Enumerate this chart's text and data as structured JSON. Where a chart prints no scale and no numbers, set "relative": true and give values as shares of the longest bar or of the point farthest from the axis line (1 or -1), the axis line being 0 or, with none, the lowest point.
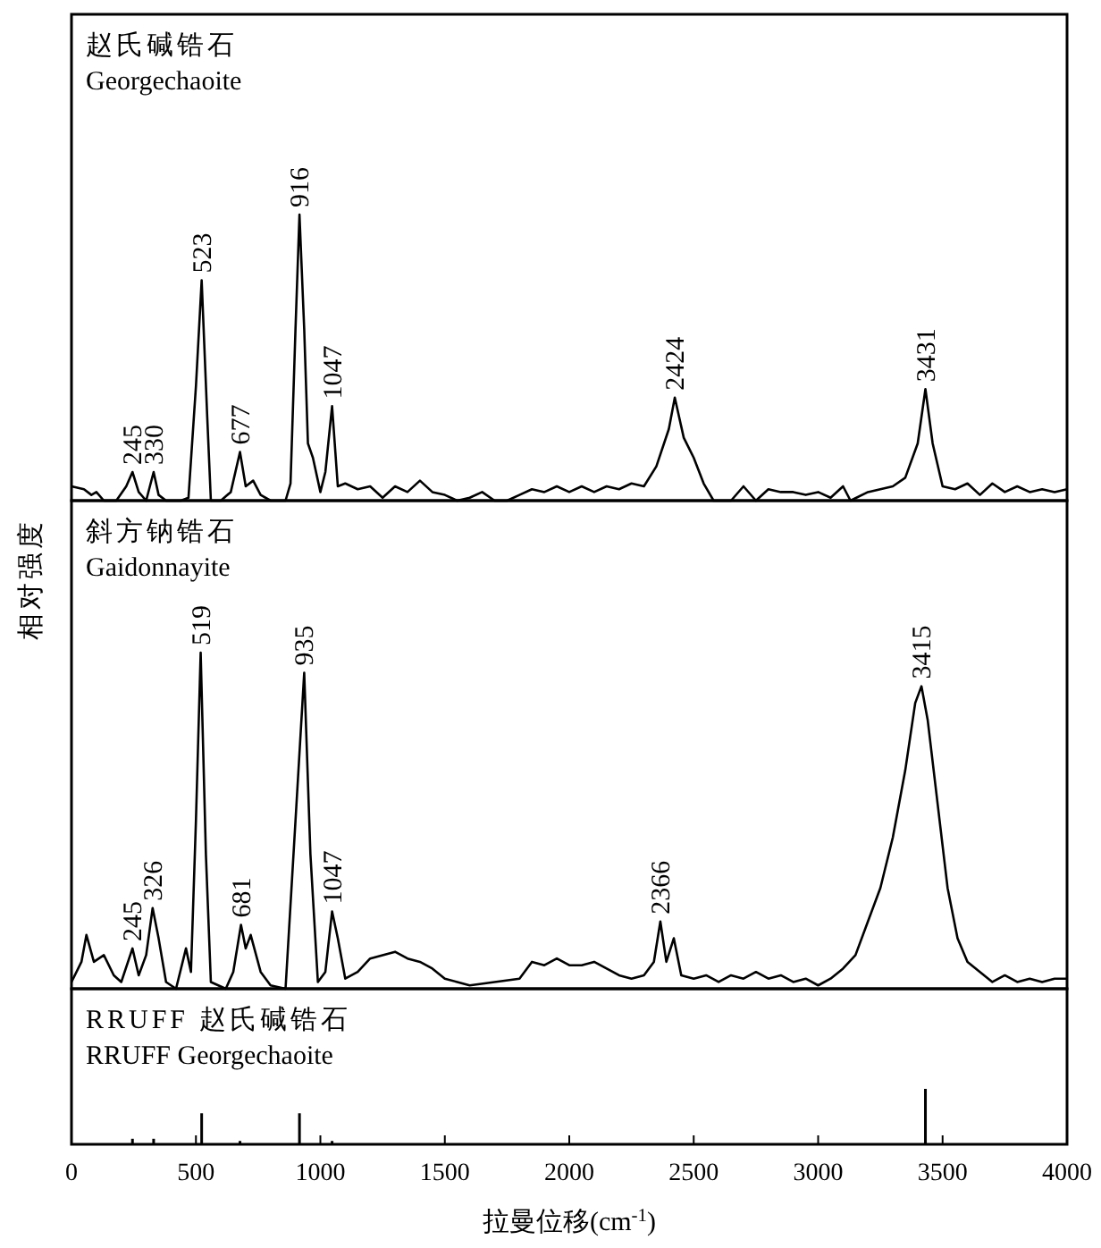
{
  "chart_data": [
    {
      "type": "line",
      "title": "赵氏碱锆石",
      "subtitle": "Georgechaoite",
      "relative": true,
      "xlim": [
        0,
        4000
      ],
      "tick_labels": false,
      "series": [
        {
          "color": "#000000",
          "x": [
            0,
            50,
            80,
            100,
            130,
            180,
            220,
            245,
            270,
            300,
            330,
            350,
            380,
            440,
            470,
            500,
            523,
            545,
            560,
            600,
            640,
            677,
            700,
            730,
            760,
            800,
            860,
            880,
            900,
            916,
            935,
            950,
            970,
            1000,
            1020,
            1047,
            1070,
            1100,
            1150,
            1200,
            1250,
            1300,
            1350,
            1400,
            1450,
            1500,
            1550,
            1600,
            1650,
            1700,
            1750,
            1800,
            1850,
            1900,
            1950,
            2000,
            2050,
            2100,
            2150,
            2200,
            2250,
            2300,
            2350,
            2400,
            2424,
            2460,
            2500,
            2540,
            2580,
            2650,
            2700,
            2750,
            2800,
            2850,
            2900,
            2950,
            3000,
            3050,
            3100,
            3130,
            3200,
            3250,
            3300,
            3350,
            3400,
            3431,
            3460,
            3500,
            3550,
            3600,
            3650,
            3700,
            3750,
            3800,
            3850,
            3900,
            3950,
            4000
          ],
          "values": [
            0.05,
            0.04,
            0.02,
            0.03,
            0,
            0,
            0.05,
            0.1,
            0.03,
            0,
            0.1,
            0.02,
            0,
            0,
            0.01,
            0.4,
            0.77,
            0.3,
            0,
            0,
            0.03,
            0.17,
            0.05,
            0.07,
            0.02,
            0,
            0,
            0.06,
            0.6,
            1,
            0.6,
            0.2,
            0.15,
            0.03,
            0.1,
            0.33,
            0.05,
            0.06,
            0.04,
            0.05,
            0.01,
            0.05,
            0.03,
            0.07,
            0.03,
            0.02,
            0,
            0.01,
            0.03,
            0,
            0,
            0.02,
            0.04,
            0.03,
            0.05,
            0.03,
            0.05,
            0.03,
            0.05,
            0.04,
            0.06,
            0.05,
            0.12,
            0.25,
            0.36,
            0.22,
            0.15,
            0.06,
            0,
            0,
            0.05,
            0,
            0.04,
            0.03,
            0.03,
            0.02,
            0.03,
            0.01,
            0.05,
            0,
            0.03,
            0.04,
            0.05,
            0.08,
            0.2,
            0.39,
            0.2,
            0.05,
            0.04,
            0.06,
            0.02,
            0.06,
            0.03,
            0.05,
            0.03,
            0.04,
            0.03,
            0.04
          ]
        }
      ],
      "annotations": [
        {
          "text": "245",
          "x": 245,
          "y": 0.1
        },
        {
          "text": "330",
          "x": 330,
          "y": 0.1
        },
        {
          "text": "523",
          "x": 523,
          "y": 0.77
        },
        {
          "text": "677",
          "x": 677,
          "y": 0.17
        },
        {
          "text": "916",
          "x": 916,
          "y": 1
        },
        {
          "text": "1047",
          "x": 1047,
          "y": 0.33
        },
        {
          "text": "2424",
          "x": 2424,
          "y": 0.36
        },
        {
          "text": "3431",
          "x": 3431,
          "y": 0.39
        }
      ]
    },
    {
      "type": "line",
      "title": "斜方钠锆石",
      "subtitle": "Gaidonnayite",
      "ylabel": "相对强度",
      "relative": true,
      "xlim": [
        0,
        4000
      ],
      "tick_labels": false,
      "series": [
        {
          "color": "#000000",
          "x": [
            0,
            40,
            60,
            90,
            130,
            170,
            200,
            245,
            270,
            300,
            326,
            350,
            380,
            420,
            460,
            480,
            500,
            519,
            540,
            560,
            620,
            650,
            681,
            700,
            720,
            760,
            800,
            860,
            900,
            935,
            960,
            990,
            1020,
            1047,
            1070,
            1100,
            1150,
            1200,
            1250,
            1300,
            1350,
            1400,
            1450,
            1500,
            1550,
            1600,
            1700,
            1800,
            1850,
            1900,
            1950,
            2000,
            2050,
            2100,
            2150,
            2200,
            2250,
            2300,
            2340,
            2366,
            2390,
            2420,
            2450,
            2500,
            2550,
            2600,
            2650,
            2700,
            2750,
            2800,
            2850,
            2900,
            2950,
            3000,
            3050,
            3100,
            3150,
            3200,
            3250,
            3300,
            3350,
            3390,
            3415,
            3440,
            3480,
            3520,
            3560,
            3600,
            3650,
            3700,
            3750,
            3800,
            3850,
            3900,
            3950,
            4000
          ],
          "values": [
            0.02,
            0.08,
            0.16,
            0.08,
            0.1,
            0.04,
            0.02,
            0.12,
            0.04,
            0.1,
            0.24,
            0.15,
            0.02,
            0,
            0.12,
            0.05,
            0.5,
            1,
            0.4,
            0.02,
            0,
            0.05,
            0.19,
            0.12,
            0.16,
            0.05,
            0.01,
            0,
            0.5,
            0.94,
            0.4,
            0.02,
            0.05,
            0.23,
            0.15,
            0.03,
            0.05,
            0.09,
            0.1,
            0.11,
            0.09,
            0.08,
            0.06,
            0.03,
            0.02,
            0.01,
            0.02,
            0.03,
            0.08,
            0.07,
            0.09,
            0.07,
            0.07,
            0.08,
            0.06,
            0.04,
            0.03,
            0.04,
            0.08,
            0.2,
            0.08,
            0.15,
            0.04,
            0.03,
            0.04,
            0.02,
            0.04,
            0.03,
            0.05,
            0.03,
            0.04,
            0.02,
            0.03,
            0.01,
            0.03,
            0.06,
            0.1,
            0.2,
            0.3,
            0.45,
            0.65,
            0.85,
            0.9,
            0.8,
            0.55,
            0.3,
            0.15,
            0.08,
            0.05,
            0.02,
            0.04,
            0.02,
            0.03,
            0.02,
            0.03,
            0.03
          ]
        }
      ],
      "annotations": [
        {
          "text": "245",
          "x": 245,
          "y": 0.12
        },
        {
          "text": "326",
          "x": 326,
          "y": 0.24
        },
        {
          "text": "519",
          "x": 519,
          "y": 1
        },
        {
          "text": "681",
          "x": 681,
          "y": 0.19
        },
        {
          "text": "935",
          "x": 935,
          "y": 0.94
        },
        {
          "text": "1047",
          "x": 1047,
          "y": 0.23
        },
        {
          "text": "2366",
          "x": 2366,
          "y": 0.2
        },
        {
          "text": "3415",
          "x": 3415,
          "y": 0.9
        }
      ]
    },
    {
      "type": "bar",
      "title": "RRUFF 赵氏碱锆石",
      "subtitle": "RRUFF Georgechaoite",
      "relative": true,
      "xlabel": "拉曼位移(cm$^{-1}$)",
      "xlim": [
        0,
        4000
      ],
      "xticks": [
        0,
        500,
        1000,
        1500,
        2000,
        2500,
        3000,
        3500,
        4000
      ],
      "tick_labels": "x",
      "x": [
        245,
        330,
        523,
        677,
        916,
        1047,
        3431
      ],
      "values": [
        0.1,
        0.1,
        0.56,
        0.06,
        0.56,
        0.06,
        1
      ],
      "color": "#000000"
    }
  ]
}
